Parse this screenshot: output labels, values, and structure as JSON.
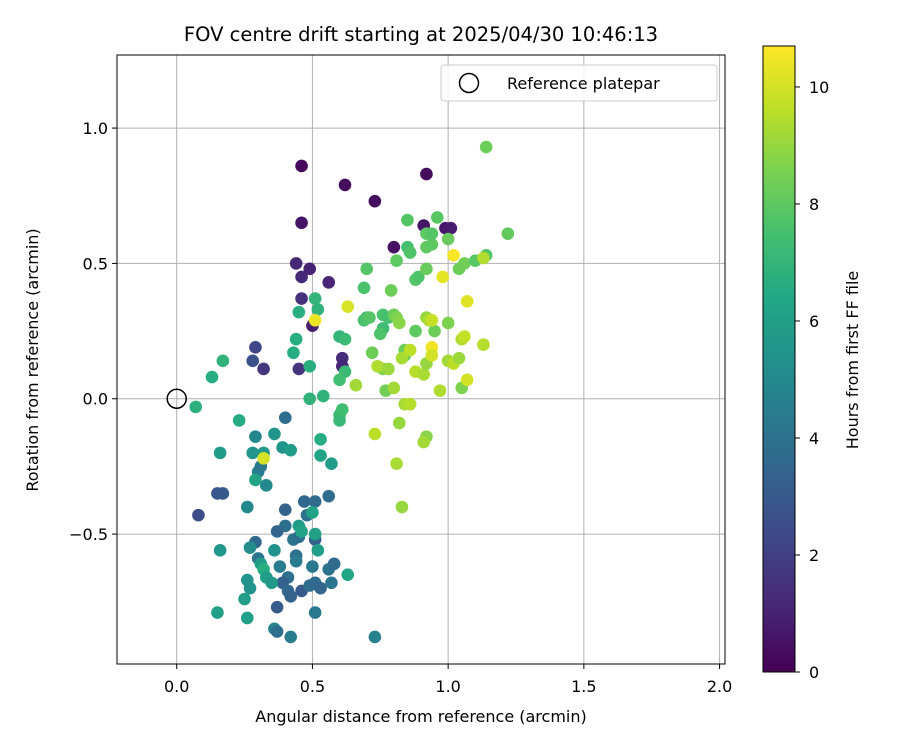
{
  "chart_data": {
    "type": "scatter",
    "title": "FOV centre drift starting at 2025/04/30 10:46:13",
    "xlabel": "Angular distance from reference (arcmin)",
    "ylabel": "Rotation from reference (arcmin)",
    "xlim": [
      -0.22,
      2.02
    ],
    "ylim": [
      -0.98,
      1.27
    ],
    "xticks": [
      0.0,
      0.5,
      1.0,
      1.5,
      2.0
    ],
    "xtick_labels": [
      "0.0",
      "0.5",
      "1.0",
      "1.5",
      "2.0"
    ],
    "yticks": [
      -0.5,
      0.0,
      0.5,
      1.0
    ],
    "ytick_labels": [
      "−0.5",
      "0.0",
      "0.5",
      "1.0"
    ],
    "grid": true,
    "legend": {
      "placement": "top-right",
      "entries": [
        "Reference platepar"
      ]
    },
    "reference_point": {
      "x": 0.0,
      "y": 0.0
    },
    "colorbar": {
      "label": "Hours from first FF file",
      "colormap": "viridis",
      "range": [
        0,
        10.7
      ],
      "ticks": [
        0,
        2,
        4,
        6,
        8,
        10
      ],
      "tick_labels": [
        "0",
        "2",
        "4",
        "6",
        "8",
        "10"
      ]
    },
    "points": [
      {
        "x": 0.46,
        "y": 0.86,
        "c": 0.2
      },
      {
        "x": 0.62,
        "y": 0.79,
        "c": 0.3
      },
      {
        "x": 0.73,
        "y": 0.73,
        "c": 0.4
      },
      {
        "x": 0.92,
        "y": 0.83,
        "c": 0.3
      },
      {
        "x": 0.46,
        "y": 0.65,
        "c": 0.6
      },
      {
        "x": 0.8,
        "y": 0.56,
        "c": 0.5
      },
      {
        "x": 0.91,
        "y": 0.64,
        "c": 0.6
      },
      {
        "x": 0.99,
        "y": 0.63,
        "c": 0.7
      },
      {
        "x": 1.01,
        "y": 0.63,
        "c": 0.8
      },
      {
        "x": 0.44,
        "y": 0.5,
        "c": 1.2
      },
      {
        "x": 0.49,
        "y": 0.48,
        "c": 1.0
      },
      {
        "x": 0.46,
        "y": 0.45,
        "c": 1.3
      },
      {
        "x": 0.56,
        "y": 0.43,
        "c": 1.1
      },
      {
        "x": 0.46,
        "y": 0.37,
        "c": 1.5
      },
      {
        "x": 0.5,
        "y": 0.27,
        "c": 0.9
      },
      {
        "x": 0.61,
        "y": 0.15,
        "c": 1.4
      },
      {
        "x": 0.61,
        "y": 0.12,
        "c": 1.2
      },
      {
        "x": 0.45,
        "y": 0.11,
        "c": 1.6
      },
      {
        "x": 0.29,
        "y": 0.19,
        "c": 2.2
      },
      {
        "x": 0.32,
        "y": 0.11,
        "c": 1.7
      },
      {
        "x": 0.28,
        "y": 0.14,
        "c": 2.6
      },
      {
        "x": 0.08,
        "y": -0.43,
        "c": 2.5
      },
      {
        "x": 0.15,
        "y": -0.35,
        "c": 2.8
      },
      {
        "x": 0.17,
        "y": -0.35,
        "c": 3.0
      },
      {
        "x": 0.4,
        "y": -0.07,
        "c": 3.8
      },
      {
        "x": 0.4,
        "y": -0.41,
        "c": 3.4
      },
      {
        "x": 0.47,
        "y": -0.38,
        "c": 3.6
      },
      {
        "x": 0.51,
        "y": -0.38,
        "c": 3.7
      },
      {
        "x": 0.56,
        "y": -0.36,
        "c": 3.8
      },
      {
        "x": 0.48,
        "y": -0.43,
        "c": 4.0
      },
      {
        "x": 0.4,
        "y": -0.47,
        "c": 3.9
      },
      {
        "x": 0.37,
        "y": -0.49,
        "c": 3.5
      },
      {
        "x": 0.43,
        "y": -0.52,
        "c": 4.1
      },
      {
        "x": 0.45,
        "y": -0.51,
        "c": 3.8
      },
      {
        "x": 0.51,
        "y": -0.52,
        "c": 3.3
      },
      {
        "x": 0.29,
        "y": -0.53,
        "c": 3.6
      },
      {
        "x": 0.3,
        "y": -0.59,
        "c": 4.2
      },
      {
        "x": 0.38,
        "y": -0.62,
        "c": 4.5
      },
      {
        "x": 0.41,
        "y": -0.66,
        "c": 3.9
      },
      {
        "x": 0.44,
        "y": -0.58,
        "c": 4.0
      },
      {
        "x": 0.44,
        "y": -0.6,
        "c": 4.4
      },
      {
        "x": 0.5,
        "y": -0.62,
        "c": 4.3
      },
      {
        "x": 0.56,
        "y": -0.63,
        "c": 4.1
      },
      {
        "x": 0.58,
        "y": -0.61,
        "c": 3.7
      },
      {
        "x": 0.39,
        "y": -0.68,
        "c": 3.2
      },
      {
        "x": 0.41,
        "y": -0.71,
        "c": 3.6
      },
      {
        "x": 0.42,
        "y": -0.73,
        "c": 3.4
      },
      {
        "x": 0.46,
        "y": -0.71,
        "c": 3.0
      },
      {
        "x": 0.49,
        "y": -0.69,
        "c": 3.9
      },
      {
        "x": 0.51,
        "y": -0.68,
        "c": 3.7
      },
      {
        "x": 0.53,
        "y": -0.7,
        "c": 3.5
      },
      {
        "x": 0.57,
        "y": -0.68,
        "c": 4.2
      },
      {
        "x": 0.37,
        "y": -0.77,
        "c": 3.1
      },
      {
        "x": 0.51,
        "y": -0.79,
        "c": 4.3
      },
      {
        "x": 0.36,
        "y": -0.85,
        "c": 4.8
      },
      {
        "x": 0.37,
        "y": -0.86,
        "c": 3.9
      },
      {
        "x": 0.42,
        "y": -0.88,
        "c": 4.4
      },
      {
        "x": 0.73,
        "y": -0.88,
        "c": 4.7
      },
      {
        "x": 0.29,
        "y": -0.14,
        "c": 4.9
      },
      {
        "x": 0.26,
        "y": -0.4,
        "c": 5.0
      },
      {
        "x": 0.3,
        "y": -0.27,
        "c": 4.6
      },
      {
        "x": 0.31,
        "y": -0.25,
        "c": 4.3
      },
      {
        "x": 0.33,
        "y": -0.32,
        "c": 5.0
      },
      {
        "x": 0.32,
        "y": -0.2,
        "c": 5.6
      },
      {
        "x": 0.28,
        "y": -0.2,
        "c": 5.5
      },
      {
        "x": 0.36,
        "y": -0.13,
        "c": 5.5
      },
      {
        "x": 0.39,
        "y": -0.18,
        "c": 5.5
      },
      {
        "x": 0.42,
        "y": -0.19,
        "c": 5.8
      },
      {
        "x": 0.53,
        "y": -0.15,
        "c": 6.6
      },
      {
        "x": 0.53,
        "y": -0.21,
        "c": 6.3
      },
      {
        "x": 0.57,
        "y": -0.24,
        "c": 5.9
      },
      {
        "x": 0.29,
        "y": -0.3,
        "c": 6.2
      },
      {
        "x": 0.16,
        "y": -0.2,
        "c": 5.8
      },
      {
        "x": 0.16,
        "y": -0.56,
        "c": 5.6
      },
      {
        "x": 0.27,
        "y": -0.55,
        "c": 5.2
      },
      {
        "x": 0.36,
        "y": -0.56,
        "c": 5.4
      },
      {
        "x": 0.31,
        "y": -0.61,
        "c": 5.9
      },
      {
        "x": 0.32,
        "y": -0.63,
        "c": 6.6
      },
      {
        "x": 0.33,
        "y": -0.66,
        "c": 6.0
      },
      {
        "x": 0.35,
        "y": -0.68,
        "c": 5.7
      },
      {
        "x": 0.26,
        "y": -0.67,
        "c": 5.5
      },
      {
        "x": 0.27,
        "y": -0.7,
        "c": 5.4
      },
      {
        "x": 0.25,
        "y": -0.74,
        "c": 5.9
      },
      {
        "x": 0.26,
        "y": -0.81,
        "c": 6.0
      },
      {
        "x": 0.15,
        "y": -0.79,
        "c": 6.0
      },
      {
        "x": 0.45,
        "y": -0.47,
        "c": 5.8
      },
      {
        "x": 0.46,
        "y": -0.49,
        "c": 6.2
      },
      {
        "x": 0.51,
        "y": -0.5,
        "c": 6.1
      },
      {
        "x": 0.52,
        "y": -0.56,
        "c": 5.9
      },
      {
        "x": 0.5,
        "y": -0.42,
        "c": 6.2
      },
      {
        "x": 0.63,
        "y": -0.65,
        "c": 6.3
      },
      {
        "x": 0.23,
        "y": -0.08,
        "c": 6.5
      },
      {
        "x": 0.07,
        "y": -0.03,
        "c": 6.8
      },
      {
        "x": 0.13,
        "y": 0.08,
        "c": 6.6
      },
      {
        "x": 0.17,
        "y": 0.14,
        "c": 6.9
      },
      {
        "x": 0.44,
        "y": 0.22,
        "c": 6.6
      },
      {
        "x": 0.43,
        "y": 0.17,
        "c": 6.6
      },
      {
        "x": 0.49,
        "y": 0.12,
        "c": 6.7
      },
      {
        "x": 0.45,
        "y": 0.32,
        "c": 6.7
      },
      {
        "x": 0.51,
        "y": 0.37,
        "c": 7.0
      },
      {
        "x": 0.52,
        "y": 0.33,
        "c": 6.9
      },
      {
        "x": 0.49,
        "y": 0.0,
        "c": 6.9
      },
      {
        "x": 0.54,
        "y": 0.01,
        "c": 6.9
      },
      {
        "x": 0.6,
        "y": 0.23,
        "c": 7.0
      },
      {
        "x": 0.62,
        "y": 0.22,
        "c": 7.2
      },
      {
        "x": 0.62,
        "y": 0.1,
        "c": 7.2
      },
      {
        "x": 0.6,
        "y": 0.07,
        "c": 7.4
      },
      {
        "x": 0.6,
        "y": -0.06,
        "c": 7.3
      },
      {
        "x": 0.6,
        "y": -0.08,
        "c": 7.1
      },
      {
        "x": 0.61,
        "y": -0.04,
        "c": 7.4
      },
      {
        "x": 0.7,
        "y": 0.3,
        "c": 7.4
      },
      {
        "x": 0.69,
        "y": 0.29,
        "c": 7.6
      },
      {
        "x": 0.69,
        "y": 0.41,
        "c": 7.6
      },
      {
        "x": 0.7,
        "y": 0.48,
        "c": 7.8
      },
      {
        "x": 0.76,
        "y": 0.26,
        "c": 7.3
      },
      {
        "x": 0.76,
        "y": 0.31,
        "c": 7.6
      },
      {
        "x": 0.78,
        "y": 0.3,
        "c": 7.5
      },
      {
        "x": 0.71,
        "y": 0.3,
        "c": 7.8
      },
      {
        "x": 0.72,
        "y": 0.17,
        "c": 8.3
      },
      {
        "x": 0.79,
        "y": 0.4,
        "c": 8.3
      },
      {
        "x": 0.81,
        "y": 0.51,
        "c": 8.0
      },
      {
        "x": 0.84,
        "y": 0.16,
        "c": 8.1
      },
      {
        "x": 0.84,
        "y": 0.18,
        "c": 8.3
      },
      {
        "x": 0.85,
        "y": 0.66,
        "c": 7.8
      },
      {
        "x": 0.85,
        "y": 0.56,
        "c": 7.5
      },
      {
        "x": 0.86,
        "y": 0.54,
        "c": 7.7
      },
      {
        "x": 0.88,
        "y": 0.44,
        "c": 7.8
      },
      {
        "x": 0.89,
        "y": 0.45,
        "c": 7.7
      },
      {
        "x": 0.88,
        "y": 0.25,
        "c": 8.0
      },
      {
        "x": 0.92,
        "y": 0.61,
        "c": 8.0
      },
      {
        "x": 0.92,
        "y": 0.56,
        "c": 8.1
      },
      {
        "x": 0.94,
        "y": 0.57,
        "c": 8.0
      },
      {
        "x": 0.94,
        "y": 0.61,
        "c": 7.8
      },
      {
        "x": 0.92,
        "y": 0.48,
        "c": 8.2
      },
      {
        "x": 0.95,
        "y": 0.25,
        "c": 8.3
      },
      {
        "x": 0.96,
        "y": 0.67,
        "c": 7.9
      },
      {
        "x": 1.0,
        "y": 0.59,
        "c": 8.2
      },
      {
        "x": 1.0,
        "y": 0.28,
        "c": 8.6
      },
      {
        "x": 1.04,
        "y": 0.48,
        "c": 8.3
      },
      {
        "x": 1.06,
        "y": 0.5,
        "c": 8.4
      },
      {
        "x": 1.1,
        "y": 0.51,
        "c": 7.9
      },
      {
        "x": 1.14,
        "y": 0.53,
        "c": 7.8
      },
      {
        "x": 1.14,
        "y": 0.93,
        "c": 8.3
      },
      {
        "x": 1.22,
        "y": 0.61,
        "c": 8.1
      },
      {
        "x": 0.75,
        "y": 0.24,
        "c": 7.7
      },
      {
        "x": 0.76,
        "y": 0.11,
        "c": 8.6
      },
      {
        "x": 0.77,
        "y": 0.03,
        "c": 8.4
      },
      {
        "x": 0.8,
        "y": 0.31,
        "c": 8.3
      },
      {
        "x": 0.81,
        "y": 0.3,
        "c": 8.6
      },
      {
        "x": 0.82,
        "y": 0.28,
        "c": 8.8
      },
      {
        "x": 0.84,
        "y": -0.02,
        "c": 9.3
      },
      {
        "x": 0.86,
        "y": -0.02,
        "c": 9.5
      },
      {
        "x": 0.82,
        "y": -0.09,
        "c": 9.0
      },
      {
        "x": 0.81,
        "y": -0.24,
        "c": 9.3
      },
      {
        "x": 0.83,
        "y": -0.4,
        "c": 9.0
      },
      {
        "x": 0.73,
        "y": -0.13,
        "c": 9.6
      },
      {
        "x": 0.74,
        "y": 0.12,
        "c": 9.4
      },
      {
        "x": 0.78,
        "y": 0.11,
        "c": 9.1
      },
      {
        "x": 0.8,
        "y": 0.04,
        "c": 9.2
      },
      {
        "x": 0.83,
        "y": 0.15,
        "c": 9.3
      },
      {
        "x": 0.86,
        "y": 0.18,
        "c": 9.6
      },
      {
        "x": 0.88,
        "y": 0.1,
        "c": 9.5
      },
      {
        "x": 0.91,
        "y": 0.09,
        "c": 9.3
      },
      {
        "x": 0.92,
        "y": 0.13,
        "c": 9.0
      },
      {
        "x": 0.92,
        "y": -0.14,
        "c": 8.8
      },
      {
        "x": 0.91,
        "y": -0.16,
        "c": 9.2
      },
      {
        "x": 0.92,
        "y": 0.3,
        "c": 9.0
      },
      {
        "x": 0.93,
        "y": 0.29,
        "c": 9.3
      },
      {
        "x": 0.94,
        "y": 0.19,
        "c": 10.5
      },
      {
        "x": 0.94,
        "y": 0.16,
        "c": 10.0
      },
      {
        "x": 0.97,
        "y": 0.03,
        "c": 9.4
      },
      {
        "x": 1.0,
        "y": 0.14,
        "c": 9.2
      },
      {
        "x": 1.02,
        "y": 0.53,
        "c": 10.6
      },
      {
        "x": 1.02,
        "y": 0.13,
        "c": 9.6
      },
      {
        "x": 1.04,
        "y": 0.15,
        "c": 9.1
      },
      {
        "x": 1.05,
        "y": 0.22,
        "c": 9.4
      },
      {
        "x": 1.05,
        "y": 0.04,
        "c": 8.6
      },
      {
        "x": 1.06,
        "y": 0.23,
        "c": 9.7
      },
      {
        "x": 1.07,
        "y": 0.36,
        "c": 10.2
      },
      {
        "x": 1.07,
        "y": 0.07,
        "c": 10.0
      },
      {
        "x": 0.98,
        "y": 0.45,
        "c": 10.3
      },
      {
        "x": 1.13,
        "y": 0.52,
        "c": 9.4
      },
      {
        "x": 1.13,
        "y": 0.2,
        "c": 9.5
      },
      {
        "x": 0.63,
        "y": 0.34,
        "c": 10.1
      },
      {
        "x": 0.51,
        "y": 0.29,
        "c": 10.4
      },
      {
        "x": 0.66,
        "y": 0.05,
        "c": 9.2
      },
      {
        "x": 0.32,
        "y": -0.22,
        "c": 10.0
      },
      {
        "x": 0.94,
        "y": 0.29,
        "c": 9.8
      }
    ]
  }
}
